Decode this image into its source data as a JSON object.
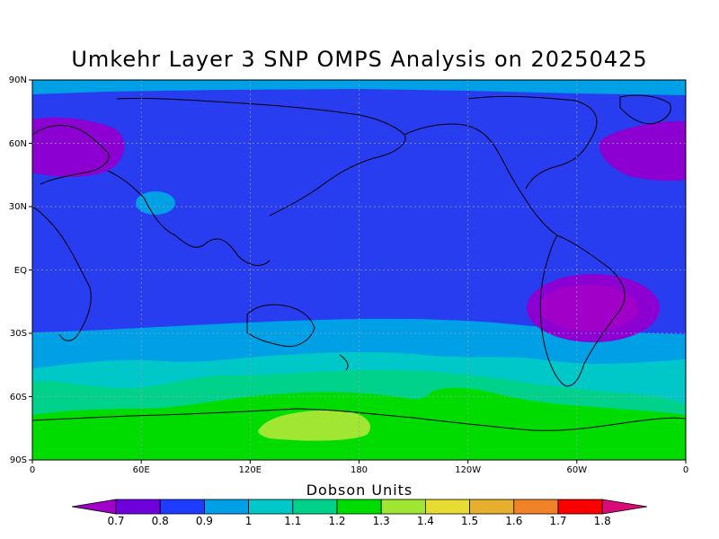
{
  "title": "Umkehr Layer 3 SNP OMPS Analysis on 20250425",
  "colorbar": {
    "title": "Dobson Units",
    "ticks": [
      "0.7",
      "0.8",
      "0.9",
      "1",
      "1.1",
      "1.2",
      "1.3",
      "1.4",
      "1.5",
      "1.6",
      "1.7",
      "1.8"
    ],
    "colors": [
      "#a000c8",
      "#6e00dc",
      "#1e3cff",
      "#00a0e6",
      "#00c8c8",
      "#00d28c",
      "#00dc00",
      "#a0e632",
      "#e6dc32",
      "#e6af2d",
      "#f08228",
      "#fa0000",
      "#dc0a78"
    ]
  },
  "axes": {
    "lat_labels": [
      "90N",
      "60N",
      "30N",
      "EQ",
      "30S",
      "60S",
      "90S"
    ],
    "lon_labels": [
      "0",
      "60E",
      "120E",
      "180",
      "120W",
      "60W",
      "0"
    ]
  },
  "field_colors": {
    "purple": "#8c00d2",
    "violet": "#a000c8",
    "blue": "#283cf0",
    "light_blue": "#00a0e6",
    "cyan": "#00c8c8",
    "green_cyan": "#00d28c",
    "green": "#00dc00",
    "yellow_green": "#a0e632"
  }
}
